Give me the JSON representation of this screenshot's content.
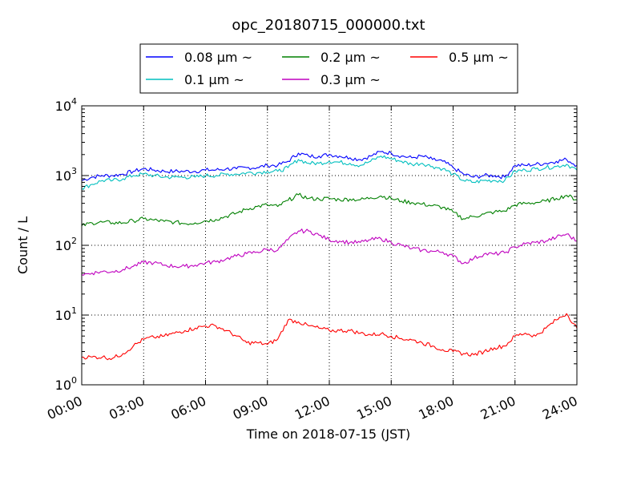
{
  "chart_data": {
    "type": "line",
    "title": "opc_20180715_000000.txt",
    "xlabel": "Time on 2018-07-15 (JST)",
    "ylabel": "Count / L",
    "yscale": "log",
    "ylim": [
      1,
      10000
    ],
    "xlim": [
      "2018-07-15 00:00",
      "2018-07-16 00:00"
    ],
    "grid": true,
    "legend_position": "top-center, outside plot",
    "x_ticks": [
      "00:00",
      "03:00",
      "06:00",
      "09:00",
      "12:00",
      "15:00",
      "18:00",
      "21:00",
      "24:00"
    ],
    "y_ticks": [
      {
        "base": "10",
        "exp": "0"
      },
      {
        "base": "10",
        "exp": "1"
      },
      {
        "base": "10",
        "exp": "2"
      },
      {
        "base": "10",
        "exp": "3"
      },
      {
        "base": "10",
        "exp": "4"
      }
    ],
    "x": [
      "00:00",
      "00:30",
      "01:00",
      "01:30",
      "02:00",
      "02:30",
      "03:00",
      "03:30",
      "04:00",
      "04:30",
      "05:00",
      "05:30",
      "06:00",
      "06:30",
      "07:00",
      "07:30",
      "08:00",
      "08:30",
      "09:00",
      "09:30",
      "10:00",
      "10:30",
      "11:00",
      "11:30",
      "12:00",
      "12:30",
      "13:00",
      "13:30",
      "14:00",
      "14:30",
      "15:00",
      "15:30",
      "16:00",
      "16:30",
      "17:00",
      "17:30",
      "18:00",
      "18:30",
      "19:00",
      "19:30",
      "20:00",
      "20:30",
      "21:00",
      "21:30",
      "22:00",
      "22:30",
      "23:00",
      "23:30",
      "24:00"
    ],
    "series": [
      {
        "name": "0.08 μm ~",
        "color": "#0000ff",
        "values": [
          850,
          950,
          1000,
          1000,
          1050,
          1150,
          1250,
          1200,
          1150,
          1150,
          1150,
          1150,
          1200,
          1200,
          1250,
          1250,
          1300,
          1300,
          1400,
          1400,
          1600,
          2100,
          1900,
          1900,
          2000,
          1900,
          1800,
          1700,
          1900,
          2200,
          2100,
          1900,
          1800,
          1900,
          1700,
          1600,
          1300,
          1050,
          950,
          1000,
          1000,
          950,
          1400,
          1400,
          1450,
          1500,
          1600,
          1700,
          1400
        ]
      },
      {
        "name": "0.1 μm ~",
        "color": "#00bfbf",
        "values": [
          650,
          750,
          850,
          850,
          900,
          1000,
          1050,
          1000,
          950,
          950,
          950,
          950,
          1000,
          1000,
          1050,
          1050,
          1100,
          1100,
          1150,
          1150,
          1300,
          1700,
          1500,
          1500,
          1600,
          1550,
          1500,
          1400,
          1600,
          1900,
          1750,
          1600,
          1450,
          1500,
          1350,
          1250,
          1050,
          850,
          800,
          850,
          850,
          850,
          1150,
          1200,
          1250,
          1300,
          1350,
          1450,
          1200
        ]
      },
      {
        "name": "0.2 μm ~",
        "color": "#008000",
        "values": [
          190,
          210,
          215,
          210,
          210,
          225,
          240,
          230,
          220,
          215,
          205,
          210,
          225,
          235,
          260,
          290,
          330,
          360,
          380,
          360,
          440,
          530,
          470,
          460,
          470,
          450,
          460,
          450,
          480,
          510,
          470,
          430,
          410,
          390,
          370,
          350,
          300,
          240,
          260,
          280,
          300,
          310,
          380,
          400,
          410,
          430,
          470,
          520,
          450
        ]
      },
      {
        "name": "0.3 μm ~",
        "color": "#bf00bf",
        "values": [
          38,
          40,
          42,
          42,
          45,
          50,
          57,
          56,
          52,
          50,
          50,
          52,
          56,
          58,
          64,
          70,
          76,
          80,
          88,
          85,
          120,
          160,
          160,
          140,
          120,
          115,
          110,
          110,
          120,
          125,
          110,
          100,
          90,
          85,
          82,
          80,
          70,
          55,
          65,
          75,
          75,
          78,
          95,
          105,
          110,
          115,
          130,
          145,
          115
        ]
      },
      {
        "name": "0.5 μm ~",
        "color": "#ff0000",
        "values": [
          2.5,
          2.5,
          2.5,
          2.4,
          2.8,
          3.6,
          4.5,
          4.8,
          5.0,
          5.5,
          6.0,
          6.5,
          7.0,
          7.0,
          6.0,
          5.0,
          4.0,
          4.0,
          3.8,
          4.5,
          8.5,
          8.0,
          7.0,
          6.5,
          6.0,
          6.0,
          6.0,
          5.5,
          5.2,
          5.4,
          5.0,
          4.6,
          4.4,
          4.0,
          3.6,
          3.2,
          3.0,
          2.8,
          2.7,
          3.0,
          3.4,
          3.6,
          5.0,
          5.5,
          5.0,
          6.5,
          8.5,
          10.5,
          6.5
        ]
      }
    ]
  }
}
